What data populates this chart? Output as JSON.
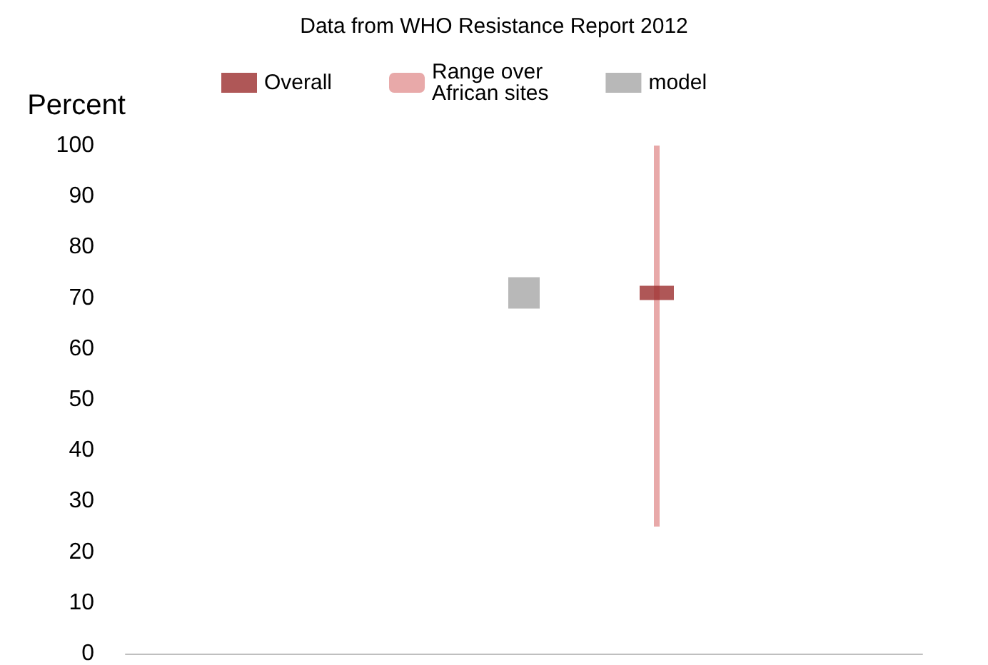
{
  "chart_data": {
    "type": "scatter",
    "title": "Data from WHO Resistance Report 2012",
    "ylabel": "Percent",
    "categories": [
      null,
      null,
      null,
      null,
      null,
      null,
      null
    ],
    "series": [
      {
        "name": "Overall",
        "color": "#9b2d2d",
        "values": [
          null,
          null,
          null,
          null,
          71,
          null,
          null
        ]
      },
      {
        "name": "Range over\nAfrican sites",
        "type": "bar",
        "color": "#e8a9a9",
        "base": [
          null,
          null,
          null,
          null,
          25,
          null,
          null
        ],
        "values": [
          null,
          null,
          null,
          null,
          75,
          null,
          null
        ]
      },
      {
        "name": "model",
        "marker": "square",
        "color": "#a6a6a6",
        "values": [
          null,
          null,
          null,
          71,
          null,
          null,
          null
        ]
      }
    ],
    "ylim": [
      0,
      100
    ],
    "yticks": [
      0,
      10,
      20,
      30,
      40,
      50,
      60,
      70,
      80,
      90,
      100
    ],
    "grid": false,
    "legend": "top"
  }
}
